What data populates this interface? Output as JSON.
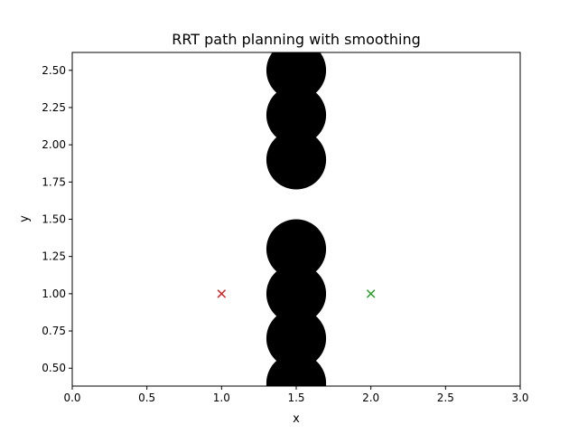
{
  "chart_data": {
    "type": "scatter",
    "title": "RRT path planning with smoothing",
    "xlabel": "x",
    "ylabel": "y",
    "xlim": [
      0.0,
      3.0
    ],
    "ylim": [
      0.38,
      2.62
    ],
    "xticks": [
      0.0,
      0.5,
      1.0,
      1.5,
      2.0,
      2.5,
      3.0
    ],
    "xtick_labels": [
      "0.0",
      "0.5",
      "1.0",
      "1.5",
      "2.0",
      "2.5",
      "3.0"
    ],
    "yticks": [
      0.5,
      0.75,
      1.0,
      1.25,
      1.5,
      1.75,
      2.0,
      2.25,
      2.5
    ],
    "ytick_labels": [
      "0.50",
      "0.75",
      "1.00",
      "1.25",
      "1.50",
      "1.75",
      "2.00",
      "2.25",
      "2.50"
    ],
    "grid": false,
    "obstacles": {
      "color": "#000000",
      "radius": 0.2,
      "centers": [
        {
          "x": 1.5,
          "y": 2.5
        },
        {
          "x": 1.5,
          "y": 2.2
        },
        {
          "x": 1.5,
          "y": 1.9
        },
        {
          "x": 1.5,
          "y": 1.3
        },
        {
          "x": 1.5,
          "y": 1.0
        },
        {
          "x": 1.5,
          "y": 0.7
        },
        {
          "x": 1.5,
          "y": 0.4
        }
      ]
    },
    "markers": [
      {
        "x": 1.0,
        "y": 1.0,
        "color": "#d62728",
        "symbol": "x"
      },
      {
        "x": 2.0,
        "y": 1.0,
        "color": "#2ca02c",
        "symbol": "x"
      }
    ]
  }
}
